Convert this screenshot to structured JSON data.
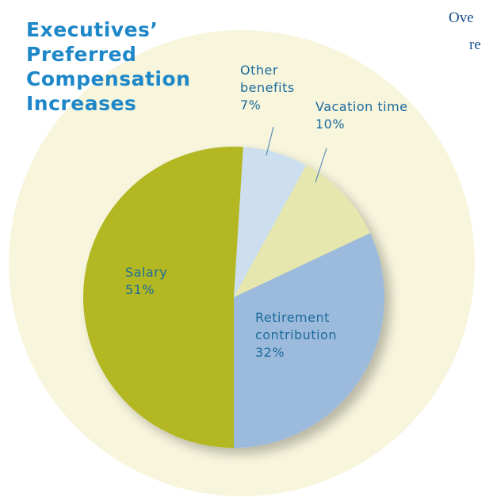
{
  "chart_data": {
    "type": "pie",
    "title": "Executives’ Preferred Compensation Increases",
    "categories": [
      "Salary",
      "Other benefits",
      "Vacation time",
      "Retirement contribution"
    ],
    "values": [
      51,
      7,
      10,
      32
    ],
    "value_labels": [
      "51%",
      "7%",
      "10%",
      "32%"
    ],
    "colors": [
      "#b2b723",
      "#cddfee",
      "#e5e7ae",
      "#9cbadb"
    ],
    "background_color": "#f7f5dc",
    "fragments": [
      "Ove",
      "re"
    ]
  }
}
